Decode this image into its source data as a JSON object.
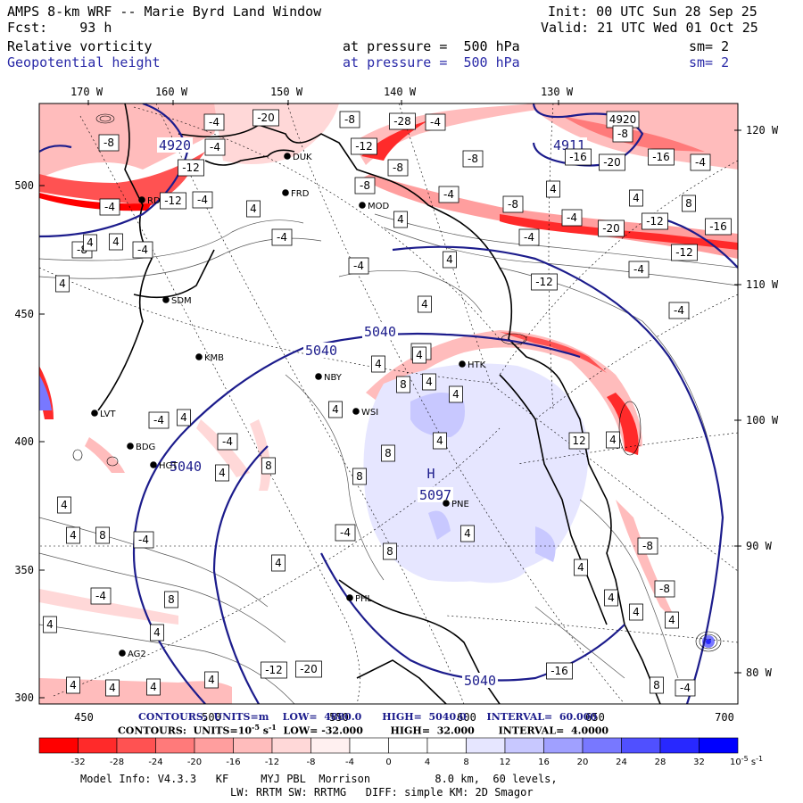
{
  "header": {
    "title": "AMPS 8-km WRF -- Marie Byrd Land Window",
    "fcst": "Fcst:    93 h",
    "init": "Init: 00 UTC Sun 28 Sep 25",
    "valid": "Valid: 21 UTC Wed 01 Oct 25",
    "field1": "Relative vorticity",
    "field1_pressure": "at pressure =  500 hPa",
    "field1_sm": "sm= 2",
    "field2": "Geopotential height",
    "field2_pressure": "at pressure =  500 hPa",
    "field2_sm": "sm= 2"
  },
  "colors": {
    "height_contour": "#1c1c8c",
    "neg_vort_max": "#ff0000",
    "pos_vort_max": "#0000ff"
  },
  "map": {
    "top_lon_labels": [
      "170 W",
      "160 W",
      "150 W",
      "140 W",
      "130 W"
    ],
    "right_lon_labels": [
      "120 W",
      "110 W",
      "100 W",
      "90 W",
      "80 W"
    ],
    "left_y_labels": [
      "500",
      "450",
      "400",
      "350",
      "300"
    ],
    "bottom_x_labels": [
      "450",
      "500",
      "550",
      "600",
      "650",
      "700"
    ],
    "height_labels": [
      "4920",
      "4911",
      "5040",
      "5040",
      "5040",
      "5040",
      "5097"
    ],
    "high_marker": "H",
    "stations": [
      "DUK",
      "FRD",
      "MOD",
      "RDD",
      "SDM",
      "KMB",
      "NBY",
      "HTK",
      "WSI",
      "LVT",
      "BDG",
      "HGT",
      "PNE",
      "PHL",
      "AG2"
    ],
    "vort_labels": [
      "-4",
      "-20",
      "-8",
      "-28",
      "-4",
      "4920",
      "-8",
      "-4",
      "-8",
      "-12",
      "-8",
      "-16",
      "-12",
      "-16",
      "-20",
      "-4",
      "-4",
      "-12",
      "-4",
      "-8",
      "-4",
      "-12",
      "-16",
      "-8",
      "-20",
      "-8",
      "4",
      "-4",
      "4",
      "-8",
      "4",
      "-4",
      "4",
      "-4",
      "4",
      "8",
      "4",
      "-4",
      "-4",
      "4",
      "4",
      "-4",
      "-12",
      "-12",
      "4",
      "-4",
      "-8",
      "4",
      "4",
      "8",
      "4",
      "4",
      "4",
      "-4",
      "4",
      "4",
      "12",
      "8",
      "4",
      "8",
      "-4",
      "4",
      "8",
      "4",
      "4",
      "8",
      "-4",
      "-4",
      "4",
      "8",
      "-8",
      "4",
      "4",
      "-8",
      "4",
      "8",
      "-4",
      "4",
      "4",
      "4",
      "4",
      "-12",
      "-20",
      "-16",
      "4",
      "4",
      "4",
      "4",
      "8",
      "-4"
    ]
  },
  "contours_height": "CONTOURS:  UNITS=m    LOW=  4880.0      HIGH=  5040.0      INTERVAL=  60.000",
  "contours_vort": {
    "prefix": "CONTOURS:  UNITS=10",
    "exp": "-5",
    "units_tail": " s",
    "units_exp": "-1",
    "rest": "  LOW= -32.000        HIGH=  32.000       INTERVAL=  4.0000"
  },
  "colorbar": {
    "labels": [
      "-32",
      "-28",
      "-24",
      "-20",
      "-16",
      "-12",
      "-8",
      "-4",
      "0",
      "4",
      "8",
      "12",
      "16",
      "20",
      "24",
      "28",
      "32"
    ],
    "unit_label": "10",
    "unit_exp": "-5",
    "unit_tail": " s",
    "unit_tail_exp": "-1",
    "colors": [
      "#ff0000",
      "#ff2a2a",
      "#ff5252",
      "#ff7a7a",
      "#ff9e9e",
      "#ffbcbc",
      "#ffd8d8",
      "#fff0f0",
      "#ffffff",
      "#ffffff",
      "#e6e6ff",
      "#c8c8ff",
      "#a0a0ff",
      "#7878ff",
      "#5050ff",
      "#2828ff",
      "#0000ff"
    ]
  },
  "footer": {
    "line1": "Model Info: V4.3.3   KF     MYJ PBL  Morrison          8.0 km,  60 levels,",
    "line2": "LW: RRTM SW: RRTMG   DIFF: simple KM: 2D Smagor"
  }
}
